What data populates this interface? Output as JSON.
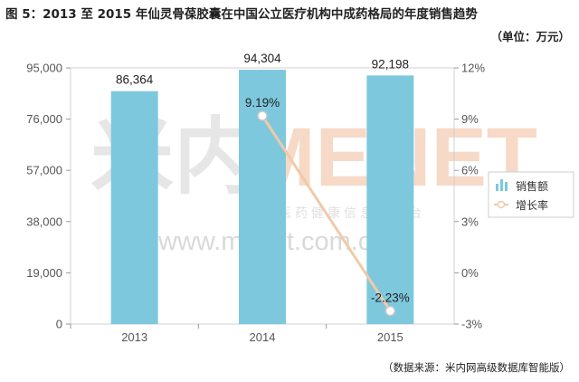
{
  "header": {
    "title": "图 5：2013 至 2015 年仙灵骨葆胶囊在中国公立医疗机构中成药格局的年度销售趋势",
    "unit": "（单位：万元）"
  },
  "footer": {
    "source": "（数据来源：米内网高级数据库智能版）"
  },
  "watermark": {
    "brand_left": "米内",
    "brand_right": "MENET",
    "tagline": "中国医药健康信息一平台",
    "url": "www.menet.com.cn"
  },
  "colors": {
    "bar": "#7ec8dd",
    "line": "#f2c9a8",
    "marker": "#ffffff",
    "watermark": "#e6e6e6",
    "watermark_accent": "#f6d9c6"
  },
  "chart_data": {
    "type": "bar",
    "categories": [
      "2013",
      "2014",
      "2015"
    ],
    "series": [
      {
        "name": "销售额",
        "type": "bar",
        "axis": "left",
        "values": [
          86364,
          94304,
          92198
        ],
        "labels": [
          "86,364",
          "94,304",
          "92,198"
        ]
      },
      {
        "name": "增长率",
        "type": "line",
        "axis": "right",
        "values": [
          null,
          9.19,
          -2.23
        ],
        "labels": [
          null,
          "9.19%",
          "-2.23%"
        ]
      }
    ],
    "y_left": {
      "ticks": [
        0,
        19000,
        38000,
        57000,
        76000,
        95000
      ],
      "tick_labels": [
        "0",
        "19,000",
        "38,000",
        "57,000",
        "76,000",
        "95,000"
      ],
      "ylim": [
        0,
        95000
      ]
    },
    "y_right": {
      "ticks": [
        -3,
        0,
        3,
        6,
        9,
        12
      ],
      "tick_labels": [
        "-3%",
        "0%",
        "3%",
        "6%",
        "9%",
        "12%"
      ],
      "ylim": [
        -3,
        12
      ]
    },
    "grid": false,
    "legend": {
      "position": "right",
      "entries": [
        "销售额",
        "增长率"
      ]
    }
  }
}
